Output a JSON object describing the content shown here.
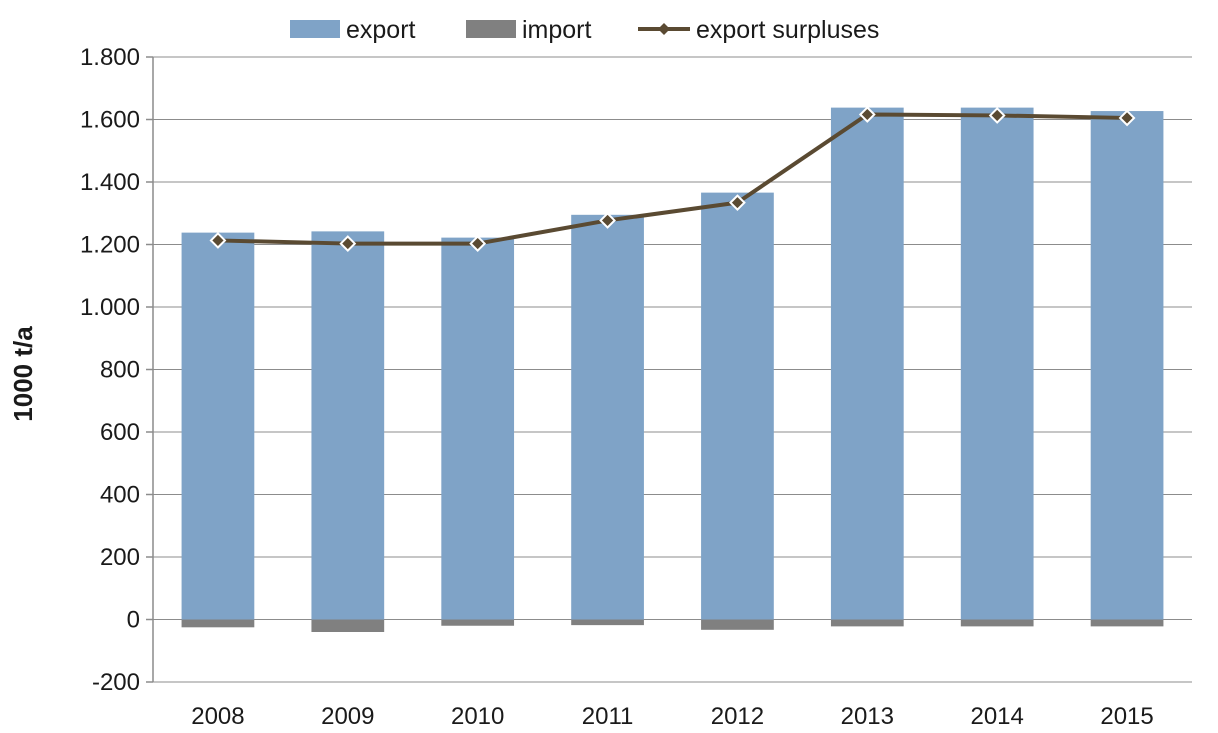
{
  "chart_data": {
    "type": "bar",
    "categories": [
      "2008",
      "2009",
      "2010",
      "2011",
      "2012",
      "2013",
      "2014",
      "2015"
    ],
    "series": [
      {
        "name": "export",
        "kind": "bar",
        "color": "#7fa3c7",
        "values": [
          1238,
          1242,
          1222,
          1295,
          1366,
          1638,
          1638,
          1627
        ]
      },
      {
        "name": "import",
        "kind": "bar",
        "color": "#808080",
        "values": [
          -25,
          -40,
          -20,
          -18,
          -33,
          -22,
          -22,
          -22
        ]
      },
      {
        "name": "export surpluses",
        "kind": "line",
        "color": "#5a4a32",
        "marker": "diamond",
        "values": [
          1213,
          1203,
          1203,
          1277,
          1334,
          1616,
          1613,
          1605
        ]
      }
    ],
    "title": "",
    "xlabel": "",
    "ylabel": "1000 t/a",
    "ylim": [
      -200,
      1800
    ],
    "yticks": [
      {
        "value": 1800,
        "label": "1.800"
      },
      {
        "value": 1600,
        "label": "1.600"
      },
      {
        "value": 1400,
        "label": "1.400"
      },
      {
        "value": 1200,
        "label": "1.200"
      },
      {
        "value": 1000,
        "label": "1.000"
      },
      {
        "value": 800,
        "label": "800"
      },
      {
        "value": 600,
        "label": "600"
      },
      {
        "value": 400,
        "label": "400"
      },
      {
        "value": 200,
        "label": "200"
      },
      {
        "value": 0,
        "label": "0"
      },
      {
        "value": -200,
        "label": "-200"
      }
    ],
    "grid": true,
    "legend": "top-center"
  }
}
